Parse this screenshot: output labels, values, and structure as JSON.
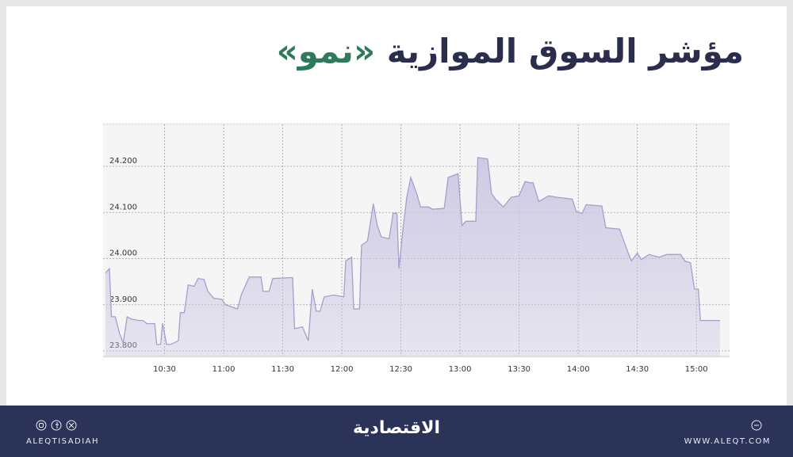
{
  "chart_data": {
    "type": "area",
    "title": "مؤشر السوق الموازية",
    "title_highlight": "«نمو»",
    "xlim": [
      600,
      912
    ],
    "ylim": [
      23.788,
      24.291
    ],
    "xticks": [
      {
        "value": 630,
        "label": "10:30"
      },
      {
        "value": 660,
        "label": "11:00"
      },
      {
        "value": 690,
        "label": "11:30"
      },
      {
        "value": 720,
        "label": "12:00"
      },
      {
        "value": 750,
        "label": "12:30"
      },
      {
        "value": 780,
        "label": "13:00"
      },
      {
        "value": 810,
        "label": "13:30"
      },
      {
        "value": 840,
        "label": "14:00"
      },
      {
        "value": 870,
        "label": "14:30"
      },
      {
        "value": 900,
        "label": "15:00"
      }
    ],
    "yticks": [
      {
        "value": 23.8,
        "label": "23.800"
      },
      {
        "value": 23.9,
        "label": "23.900"
      },
      {
        "value": 24.0,
        "label": "24.000"
      },
      {
        "value": 24.1,
        "label": "24.100"
      },
      {
        "value": 24.2,
        "label": "24.200"
      }
    ],
    "grid": true,
    "line_color": "#a79ecd",
    "fill_color": "#cdc7e3",
    "x": [
      600,
      602,
      603,
      605,
      607,
      609,
      611,
      613,
      617,
      619,
      621,
      625,
      626,
      628,
      629,
      631,
      633,
      637,
      638,
      640,
      642,
      645,
      647,
      650,
      652,
      655,
      659,
      661,
      667,
      669,
      673,
      679,
      680,
      683,
      685,
      695,
      696,
      700,
      703,
      705,
      707,
      709,
      711,
      716,
      721,
      722,
      725,
      726,
      729,
      730,
      733,
      736,
      738,
      740,
      744,
      746,
      748,
      749,
      751,
      753,
      755,
      758,
      760,
      764,
      766,
      772,
      774,
      779,
      781,
      783,
      788,
      789,
      794,
      796,
      798,
      802,
      806,
      810,
      813,
      816,
      817,
      820,
      825,
      829,
      837,
      839,
      842,
      844,
      852,
      854,
      861,
      865,
      867,
      870,
      872,
      876,
      881,
      885,
      892,
      894,
      897,
      899,
      901,
      902,
      912
    ],
    "values": [
      23.969,
      23.978,
      23.874,
      23.874,
      23.84,
      23.817,
      23.874,
      23.869,
      23.866,
      23.866,
      23.859,
      23.859,
      23.814,
      23.814,
      23.86,
      23.814,
      23.814,
      23.822,
      23.883,
      23.883,
      23.943,
      23.94,
      23.957,
      23.955,
      23.929,
      23.914,
      23.912,
      23.9,
      23.891,
      23.922,
      23.96,
      23.96,
      23.929,
      23.929,
      23.957,
      23.959,
      23.848,
      23.852,
      23.822,
      23.934,
      23.886,
      23.886,
      23.917,
      23.921,
      23.917,
      23.995,
      24.003,
      23.891,
      23.891,
      24.029,
      24.038,
      24.119,
      24.072,
      24.047,
      24.043,
      24.098,
      24.098,
      23.978,
      24.064,
      24.133,
      24.176,
      24.141,
      24.112,
      24.112,
      24.107,
      24.109,
      24.176,
      24.184,
      24.072,
      24.081,
      24.081,
      24.219,
      24.216,
      24.141,
      24.129,
      24.112,
      24.133,
      24.136,
      24.167,
      24.164,
      24.165,
      24.124,
      24.136,
      24.133,
      24.129,
      24.102,
      24.098,
      24.117,
      24.114,
      24.067,
      24.064,
      24.016,
      23.995,
      24.012,
      23.998,
      24.009,
      24.003,
      24.009,
      24.009,
      23.995,
      23.991,
      23.934,
      23.934,
      23.866,
      23.866
    ]
  },
  "footer": {
    "handle": "ALEQTISADIAH",
    "logo": "الاقتصادية",
    "website": "WWW.ALEQT.COM"
  }
}
